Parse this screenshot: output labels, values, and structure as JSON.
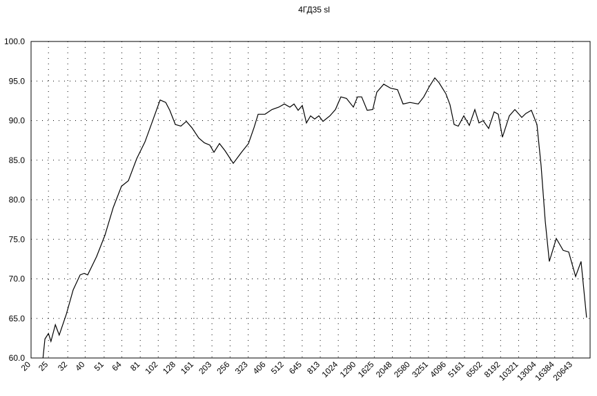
{
  "chart_data": {
    "type": "line",
    "title": "4ГД35 sl",
    "x": [
      23.3,
      23.9,
      25.0,
      25.8,
      27.3,
      28.7,
      31.4,
      34.3,
      37.5,
      39.5,
      41.3,
      46.3,
      51.5,
      57.3,
      63.7,
      69.6,
      77.4,
      86.0,
      94.0,
      104.5,
      112.2,
      118.3,
      127.0,
      136.3,
      146.2,
      156.9,
      171.4,
      184.0,
      197.5,
      208.3,
      223.5,
      239.8,
      266.7,
      296.5,
      324.0,
      347.7,
      366.6,
      400.6,
      437.8,
      478.1,
      513.1,
      550.6,
      580.8,
      612.4,
      645.8,
      680.8,
      717.9,
      756.8,
      798.3,
      841.6,
      919.6,
      987.0,
      1059,
      1137,
      1242,
      1310,
      1381,
      1483,
      1592,
      1678,
      1833,
      2003,
      2188,
      2348,
      2566,
      2853,
      3062,
      3286,
      3527,
      3718,
      4062,
      4283,
      4516,
      4761,
      5112,
      5485,
      5891,
      6209,
      6549,
      7028,
      7542,
      7948,
      8386,
      9160,
      9832,
      10740,
      11323,
      12152,
      13045,
      13759,
      14510,
      15293,
      16715,
      18257,
      19594,
      21406,
      22969,
      24651
    ],
    "series": [
      {
        "color": "#000000",
        "values": [
          60.0,
          62.4,
          63.1,
          62.1,
          64.2,
          62.9,
          65.5,
          68.6,
          70.5,
          70.7,
          70.5,
          72.8,
          75.5,
          79.0,
          81.7,
          82.4,
          85.2,
          87.3,
          89.7,
          92.6,
          92.3,
          91.3,
          89.5,
          89.3,
          89.9,
          89.1,
          87.8,
          87.2,
          86.9,
          86.0,
          87.1,
          86.2,
          84.6,
          86.0,
          87.1,
          89.1,
          90.8,
          90.8,
          91.4,
          91.7,
          92.1,
          91.7,
          92.1,
          91.3,
          91.9,
          89.7,
          90.6,
          90.2,
          90.6,
          89.9,
          90.6,
          91.4,
          93.0,
          92.8,
          91.7,
          93.0,
          93.0,
          91.3,
          91.4,
          93.6,
          94.6,
          94.1,
          93.9,
          92.1,
          92.3,
          92.1,
          93.0,
          94.3,
          95.4,
          94.8,
          93.4,
          92.0,
          89.5,
          89.3,
          90.6,
          89.4,
          91.4,
          89.7,
          90.0,
          89.0,
          91.1,
          90.8,
          87.9,
          90.6,
          91.4,
          90.4,
          90.9,
          91.3,
          89.5,
          84.3,
          77.3,
          72.2,
          75.1,
          73.6,
          73.4,
          70.3,
          72.2,
          65.1
        ]
      }
    ],
    "xscale": "log",
    "xlim": [
      20,
      25780
    ],
    "xticks": [
      20,
      25,
      32,
      40,
      51,
      64,
      81,
      102,
      128,
      161,
      203,
      256,
      323,
      406,
      512,
      645,
      813,
      1024,
      1290,
      1625,
      2048,
      2580,
      3251,
      4096,
      5161,
      6502,
      8192,
      10321,
      13004,
      16384,
      20643
    ],
    "ylim": [
      60,
      100
    ],
    "yticks": [
      {
        "value": 60,
        "label": "60.0"
      },
      {
        "value": 65,
        "label": "65.0"
      },
      {
        "value": 70,
        "label": "70.0"
      },
      {
        "value": 75,
        "label": "75.0"
      },
      {
        "value": 80,
        "label": "80.0"
      },
      {
        "value": 85,
        "label": "85.0"
      },
      {
        "value": 90,
        "label": "90.0"
      },
      {
        "value": 95,
        "label": "95.0"
      },
      {
        "value": 100,
        "label": "100.0"
      }
    ],
    "grid": true
  }
}
